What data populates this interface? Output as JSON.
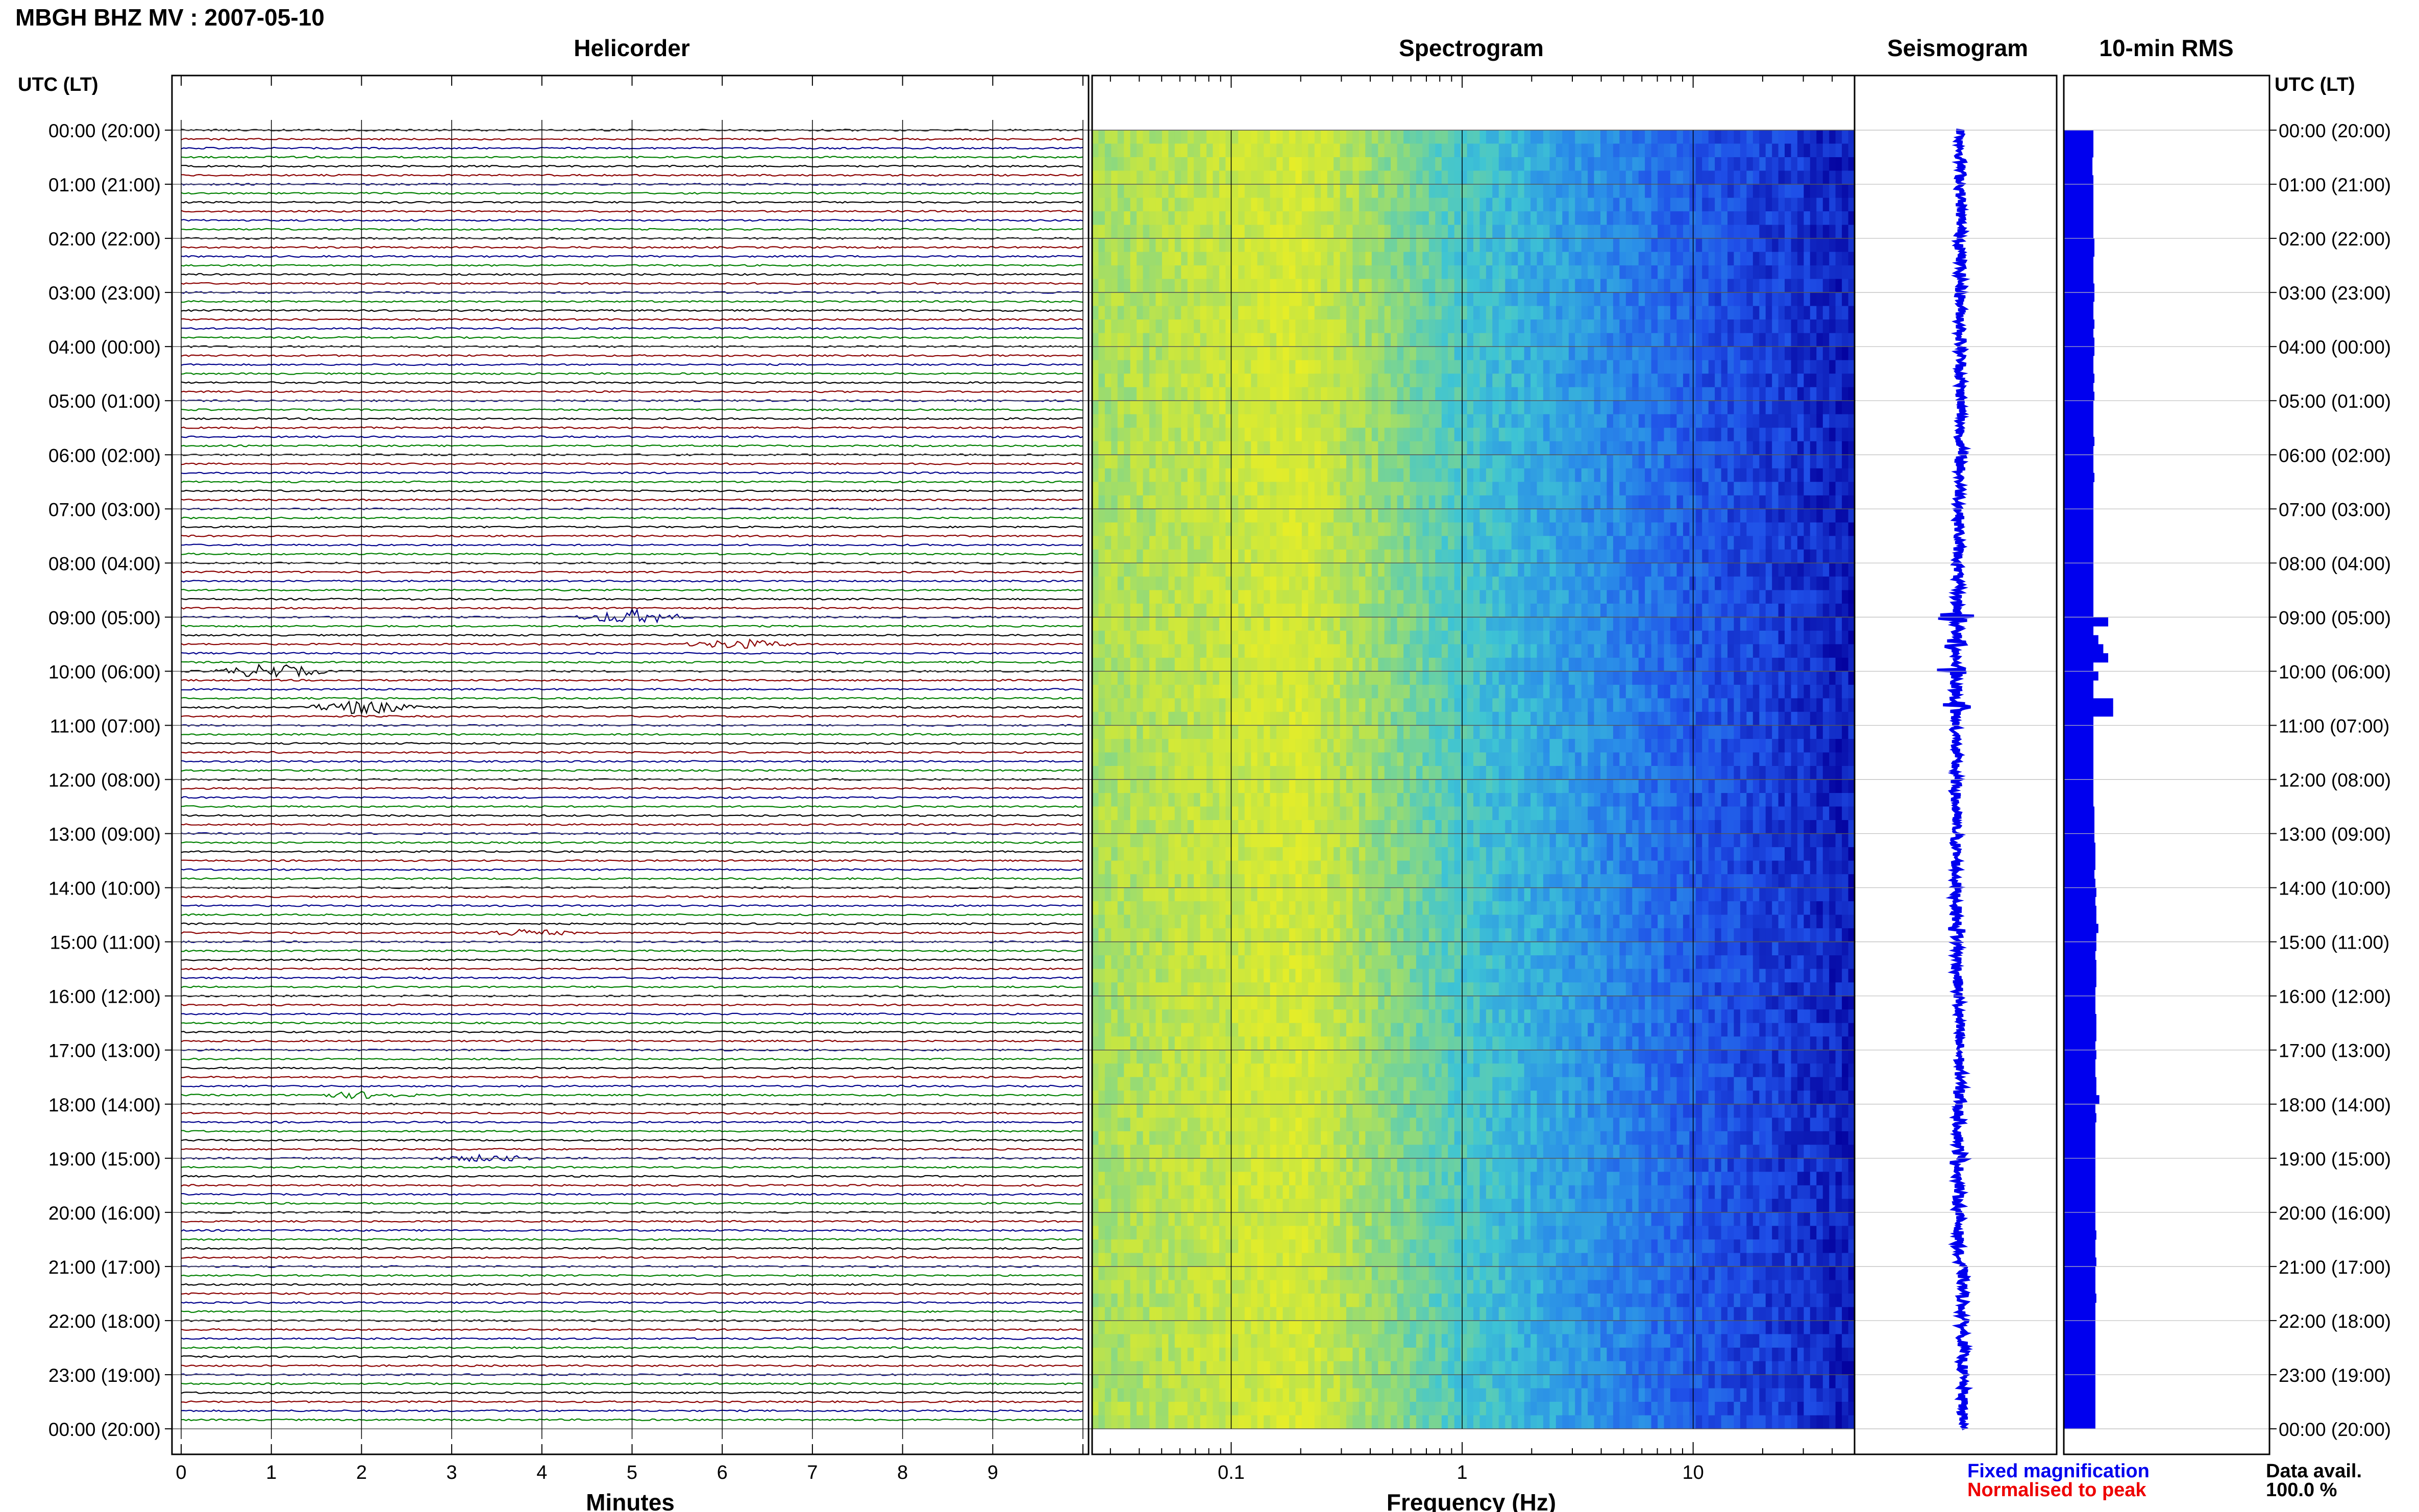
{
  "title": "MBGH BHZ MV : 2007-05-10",
  "panels": {
    "helicorder": "Helicorder",
    "spectrogram": "Spectrogram",
    "seismogram": "Seismogram",
    "rms": "10-min RMS"
  },
  "utc_header": "UTC (LT)",
  "time_labels": [
    "00:00 (20:00)",
    "01:00 (21:00)",
    "02:00 (22:00)",
    "03:00 (23:00)",
    "04:00 (00:00)",
    "05:00 (01:00)",
    "06:00 (02:00)",
    "07:00 (03:00)",
    "08:00 (04:00)",
    "09:00 (05:00)",
    "10:00 (06:00)",
    "11:00 (07:00)",
    "12:00 (08:00)",
    "13:00 (09:00)",
    "14:00 (10:00)",
    "15:00 (11:00)",
    "16:00 (12:00)",
    "17:00 (13:00)",
    "18:00 (14:00)",
    "19:00 (15:00)",
    "20:00 (16:00)",
    "21:00 (17:00)",
    "22:00 (18:00)",
    "23:00 (19:00)",
    "00:00 (20:00)"
  ],
  "minute_ticks": [
    "0",
    "1",
    "2",
    "3",
    "4",
    "5",
    "6",
    "7",
    "8",
    "9"
  ],
  "freq_ticks": [
    "0.1",
    "1",
    "10"
  ],
  "xlabel_minutes": "Minutes",
  "xlabel_freq": "Frequency (Hz)",
  "legend": {
    "fixed": "Fixed magnification",
    "normalised": "Normalised to peak"
  },
  "data_avail": {
    "label": "Data avail.",
    "value": "100.0 %"
  },
  "colors": {
    "trace_cycle": [
      "#000000",
      "#8b0000",
      "#00008b",
      "#008000"
    ],
    "seismogram": "#0000ee",
    "rms": "#0000ee",
    "legend_fixed": "#0000ee",
    "legend_normalised": "#ee0000"
  },
  "chart_data": {
    "type": "line",
    "station": "MBGH BHZ MV",
    "date": "2007-05-10",
    "traces_per_hour": 6,
    "hours": 24,
    "x_minutes_range": [
      0,
      10
    ],
    "freq_range_hz": [
      0.025,
      50
    ],
    "freq_scale": "log",
    "events": [
      {
        "time_utc": "09:00",
        "minute": 5.0,
        "amplitude": "large"
      },
      {
        "time_utc": "09:30",
        "minute": 6.2,
        "amplitude": "medium"
      },
      {
        "time_utc": "10:00",
        "minute": 1.0,
        "amplitude": "large"
      },
      {
        "time_utc": "10:40",
        "minute": 2.0,
        "amplitude": "large"
      },
      {
        "time_utc": "14:50",
        "minute": 3.8,
        "amplitude": "small"
      },
      {
        "time_utc": "17:50",
        "minute": 2.0,
        "amplitude": "small"
      },
      {
        "time_utc": "19:00",
        "minute": 3.4,
        "amplitude": "small"
      }
    ],
    "rms_10min": [
      0.6,
      0.6,
      0.6,
      0.58,
      0.58,
      0.6,
      0.6,
      0.6,
      0.6,
      0.6,
      0.6,
      0.6,
      0.62,
      0.62,
      0.6,
      0.6,
      0.6,
      0.62,
      0.62,
      0.6,
      0.6,
      0.62,
      0.6,
      0.62,
      0.62,
      0.6,
      0.6,
      0.62,
      0.6,
      0.62,
      0.6,
      0.6,
      0.6,
      0.6,
      0.62,
      0.6,
      0.6,
      0.6,
      0.62,
      0.6,
      0.6,
      0.6,
      0.6,
      0.6,
      0.6,
      0.6,
      0.6,
      0.6,
      0.6,
      0.6,
      0.6,
      0.6,
      0.6,
      0.6,
      0.9,
      0.6,
      0.7,
      0.8,
      0.9,
      0.6,
      0.7,
      0.6,
      0.6,
      1.0,
      1.0,
      0.6,
      0.6,
      0.6,
      0.6,
      0.6,
      0.6,
      0.6,
      0.6,
      0.6,
      0.6,
      0.62,
      0.62,
      0.62,
      0.62,
      0.64,
      0.64,
      0.64,
      0.62,
      0.64,
      0.66,
      0.64,
      0.66,
      0.66,
      0.7,
      0.66,
      0.66,
      0.64,
      0.66,
      0.66,
      0.66,
      0.64,
      0.64,
      0.64,
      0.66,
      0.66,
      0.66,
      0.64,
      0.66,
      0.64,
      0.64,
      0.66,
      0.66,
      0.72,
      0.64,
      0.66,
      0.64,
      0.64,
      0.64,
      0.64,
      0.64,
      0.64,
      0.64,
      0.64,
      0.64,
      0.64,
      0.64,
      0.64,
      0.66,
      0.64,
      0.64,
      0.66,
      0.64,
      0.64,
      0.64,
      0.66,
      0.64,
      0.64,
      0.64,
      0.64,
      0.64,
      0.64,
      0.64,
      0.64,
      0.64,
      0.64,
      0.64,
      0.64,
      0.64,
      0.64
    ]
  }
}
